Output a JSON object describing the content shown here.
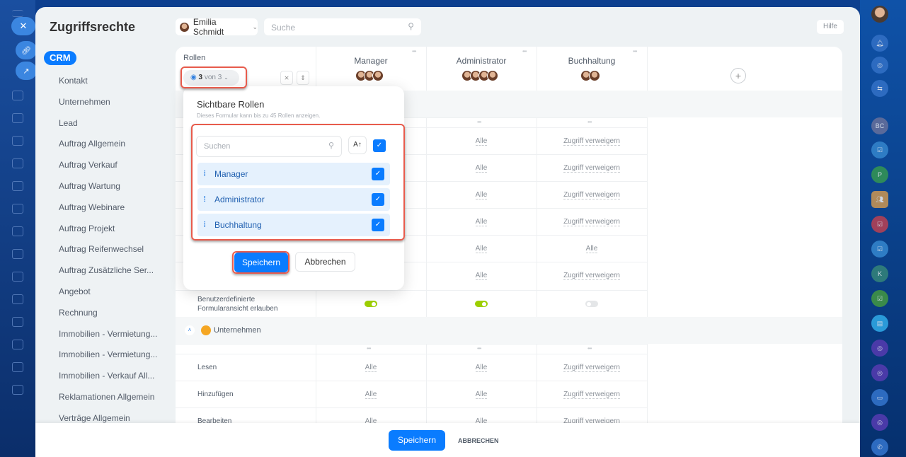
{
  "app": {
    "title": "Zugriffsrechte",
    "help": "Hilfe",
    "close_icon": "close-icon"
  },
  "nav": {
    "group": "CRM",
    "items": [
      "Kontakt",
      "Unternehmen",
      "Lead",
      "Auftrag Allgemein",
      "Auftrag Verkauf",
      "Auftrag Wartung",
      "Auftrag Webinare",
      "Auftrag Projekt",
      "Auftrag Reifenwechsel",
      "Auftrag Zusätzliche Ser...",
      "Angebot",
      "Rechnung",
      "Immobilien - Vermietung...",
      "Immobilien - Vermietung...",
      "Immobilien - Verkauf All...",
      "Reklamationen Allgemein",
      "Verträge Allgemein"
    ]
  },
  "toolbar": {
    "user": "Emilia Schmidt",
    "search_placeholder": "Suche"
  },
  "table": {
    "roles_header": "Rollen",
    "visible_count": "3",
    "visible_of": "von 3",
    "columns": [
      "Manager",
      "Administrator",
      "Buchhaltung"
    ],
    "rows_top": [
      [
        "",
        "Alle",
        "Zugriff verweigern"
      ],
      [
        "",
        "Alle",
        "Zugriff verweigern"
      ],
      [
        "",
        "Alle",
        "Zugriff verweigern"
      ],
      [
        "",
        "Alle",
        "Zugriff verweigern"
      ],
      [
        "",
        "Alle",
        "Alle"
      ],
      [
        "",
        "Alle",
        "Zugriff verweigern"
      ]
    ],
    "toggle_row": {
      "label": "Benutzerdefinierte Formularansicht erlauben",
      "values": [
        true,
        true,
        false
      ]
    },
    "section2": "Unternehmen",
    "rows_bottom": [
      {
        "label": "Lesen",
        "values": [
          "Alle",
          "Alle",
          "Zugriff verweigern"
        ]
      },
      {
        "label": "Hinzufügen",
        "values": [
          "Alle",
          "Alle",
          "Zugriff verweigern"
        ]
      },
      {
        "label": "Bearbeiten",
        "values": [
          "Alle",
          "Alle",
          "Zugriff verweigern"
        ]
      }
    ]
  },
  "popup": {
    "title": "Sichtbare Rollen",
    "subtitle": "Dieses Formular kann bis zu 45 Rollen anzeigen.",
    "search_placeholder": "Suchen",
    "items": [
      {
        "label": "Manager",
        "checked": true
      },
      {
        "label": "Administrator",
        "checked": true
      },
      {
        "label": "Buchhaltung",
        "checked": true
      }
    ],
    "save": "Speichern",
    "cancel": "Abbrechen"
  },
  "footer": {
    "save": "Speichern",
    "cancel": "ABBRECHEN"
  },
  "right_sidebar": {
    "items": [
      "BC",
      "P",
      "K"
    ]
  },
  "colors": {
    "accent": "#0a7cff",
    "highlight": "#e85b4c",
    "toggle_on": "#9dcf00"
  }
}
